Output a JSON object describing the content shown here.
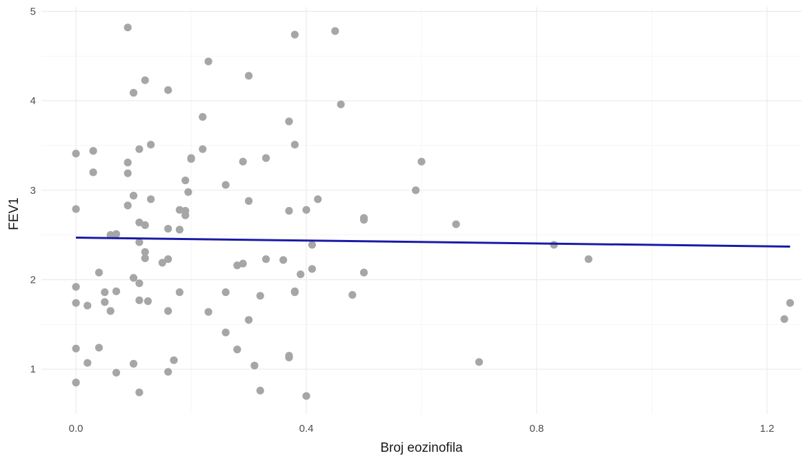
{
  "chart_data": {
    "type": "scatter",
    "title": "",
    "xlabel": "Broj eozinofila",
    "ylabel": "FEV1",
    "xlim": [
      -0.06,
      1.26
    ],
    "ylim": [
      0.5,
      5.05
    ],
    "x_ticks": [
      0.0,
      0.4,
      0.8,
      1.2
    ],
    "x_tick_labels": [
      "0.0",
      "0.4",
      "0.8",
      "1.2"
    ],
    "y_ticks": [
      1,
      2,
      3,
      4,
      5
    ],
    "y_tick_labels": [
      "1",
      "2",
      "3",
      "4",
      "5"
    ],
    "grid": true,
    "legend": "none",
    "colors": {
      "points": "#a6a6a6",
      "trend": "#1a1aa6",
      "grid_major": "#ebebeb",
      "grid_minor": "#f5f5f5"
    },
    "series": [
      {
        "type": "scatter",
        "points": [
          [
            0.0,
            3.41
          ],
          [
            0.0,
            2.79
          ],
          [
            0.0,
            1.92
          ],
          [
            0.0,
            1.74
          ],
          [
            0.0,
            1.23
          ],
          [
            0.0,
            0.85
          ],
          [
            0.02,
            1.71
          ],
          [
            0.02,
            1.07
          ],
          [
            0.03,
            3.44
          ],
          [
            0.03,
            3.2
          ],
          [
            0.04,
            2.08
          ],
          [
            0.04,
            1.24
          ],
          [
            0.05,
            1.86
          ],
          [
            0.05,
            1.75
          ],
          [
            0.06,
            2.5
          ],
          [
            0.06,
            1.65
          ],
          [
            0.07,
            2.51
          ],
          [
            0.07,
            1.87
          ],
          [
            0.07,
            0.96
          ],
          [
            0.09,
            4.82
          ],
          [
            0.09,
            3.31
          ],
          [
            0.09,
            3.19
          ],
          [
            0.09,
            2.83
          ],
          [
            0.1,
            4.09
          ],
          [
            0.1,
            2.94
          ],
          [
            0.1,
            2.02
          ],
          [
            0.1,
            1.06
          ],
          [
            0.11,
            3.46
          ],
          [
            0.11,
            2.64
          ],
          [
            0.11,
            2.42
          ],
          [
            0.11,
            1.96
          ],
          [
            0.11,
            1.77
          ],
          [
            0.11,
            0.74
          ],
          [
            0.12,
            4.23
          ],
          [
            0.12,
            2.61
          ],
          [
            0.12,
            2.31
          ],
          [
            0.12,
            2.24
          ],
          [
            0.13,
            3.51
          ],
          [
            0.13,
            2.9
          ],
          [
            0.125,
            1.76
          ],
          [
            0.15,
            2.19
          ],
          [
            0.16,
            4.12
          ],
          [
            0.16,
            2.57
          ],
          [
            0.16,
            2.23
          ],
          [
            0.16,
            1.65
          ],
          [
            0.16,
            0.97
          ],
          [
            0.17,
            1.1
          ],
          [
            0.18,
            2.78
          ],
          [
            0.18,
            2.56
          ],
          [
            0.18,
            1.86
          ],
          [
            0.19,
            3.11
          ],
          [
            0.19,
            2.77
          ],
          [
            0.19,
            2.72
          ],
          [
            0.195,
            2.98
          ],
          [
            0.2,
            3.36
          ],
          [
            0.2,
            3.35
          ],
          [
            0.22,
            3.82
          ],
          [
            0.22,
            3.46
          ],
          [
            0.23,
            4.44
          ],
          [
            0.23,
            1.64
          ],
          [
            0.26,
            3.06
          ],
          [
            0.26,
            1.86
          ],
          [
            0.26,
            1.41
          ],
          [
            0.28,
            2.16
          ],
          [
            0.28,
            1.22
          ],
          [
            0.29,
            3.32
          ],
          [
            0.29,
            2.18
          ],
          [
            0.3,
            4.28
          ],
          [
            0.3,
            2.88
          ],
          [
            0.3,
            1.55
          ],
          [
            0.31,
            1.04
          ],
          [
            0.32,
            1.82
          ],
          [
            0.32,
            0.76
          ],
          [
            0.33,
            3.36
          ],
          [
            0.33,
            2.23
          ],
          [
            0.36,
            2.22
          ],
          [
            0.37,
            3.77
          ],
          [
            0.37,
            2.77
          ],
          [
            0.37,
            1.15
          ],
          [
            0.37,
            1.13
          ],
          [
            0.38,
            4.74
          ],
          [
            0.38,
            3.51
          ],
          [
            0.38,
            1.87
          ],
          [
            0.38,
            1.86
          ],
          [
            0.39,
            2.06
          ],
          [
            0.4,
            2.78
          ],
          [
            0.4,
            0.7
          ],
          [
            0.41,
            2.39
          ],
          [
            0.41,
            2.12
          ],
          [
            0.42,
            2.9
          ],
          [
            0.45,
            4.78
          ],
          [
            0.46,
            3.96
          ],
          [
            0.48,
            1.83
          ],
          [
            0.5,
            2.69
          ],
          [
            0.5,
            2.67
          ],
          [
            0.5,
            2.08
          ],
          [
            0.59,
            3.0
          ],
          [
            0.6,
            3.32
          ],
          [
            0.66,
            2.62
          ],
          [
            0.7,
            1.08
          ],
          [
            0.83,
            2.39
          ],
          [
            0.89,
            2.23
          ],
          [
            1.23,
            1.56
          ],
          [
            1.24,
            1.74
          ]
        ]
      },
      {
        "type": "line",
        "points": [
          [
            0.0,
            2.47
          ],
          [
            1.24,
            2.37
          ]
        ]
      }
    ]
  }
}
